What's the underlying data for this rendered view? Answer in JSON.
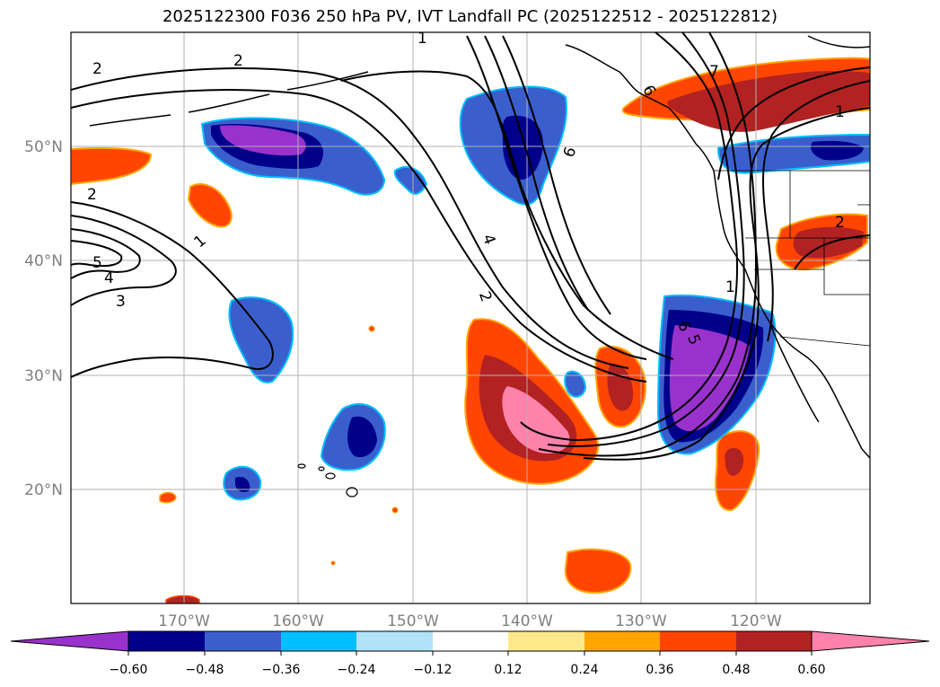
{
  "title": "2025122300 F036 250 hPa PV, IVT Landfall PC (2025122512 - 2025122812)",
  "lon_labels": [
    "170°W",
    "160°W",
    "150°W",
    "140°W",
    "130°W",
    "120°W"
  ],
  "lat_labels": [
    "50°N",
    "40°N",
    "30°N",
    "20°N"
  ],
  "colorbar": {
    "colors": [
      "#9932cc",
      "#00008b",
      "#3a5fcd",
      "#00bfff",
      "#b2e2fa",
      "#ffffff",
      "#fde98b",
      "#ffa500",
      "#ff4500",
      "#b22222",
      "#ff82ab"
    ],
    "ticks": [
      "−0.60",
      "−0.48",
      "−0.36",
      "−0.24",
      "−0.12",
      "0.12",
      "0.24",
      "0.36",
      "0.48",
      "0.60"
    ]
  },
  "contour_labels": [
    "2",
    "2",
    "1",
    "1",
    "2",
    "5",
    "4",
    "3",
    "1",
    "4",
    "2",
    "6",
    "6",
    "7",
    "1",
    "2",
    "5",
    "6"
  ]
}
